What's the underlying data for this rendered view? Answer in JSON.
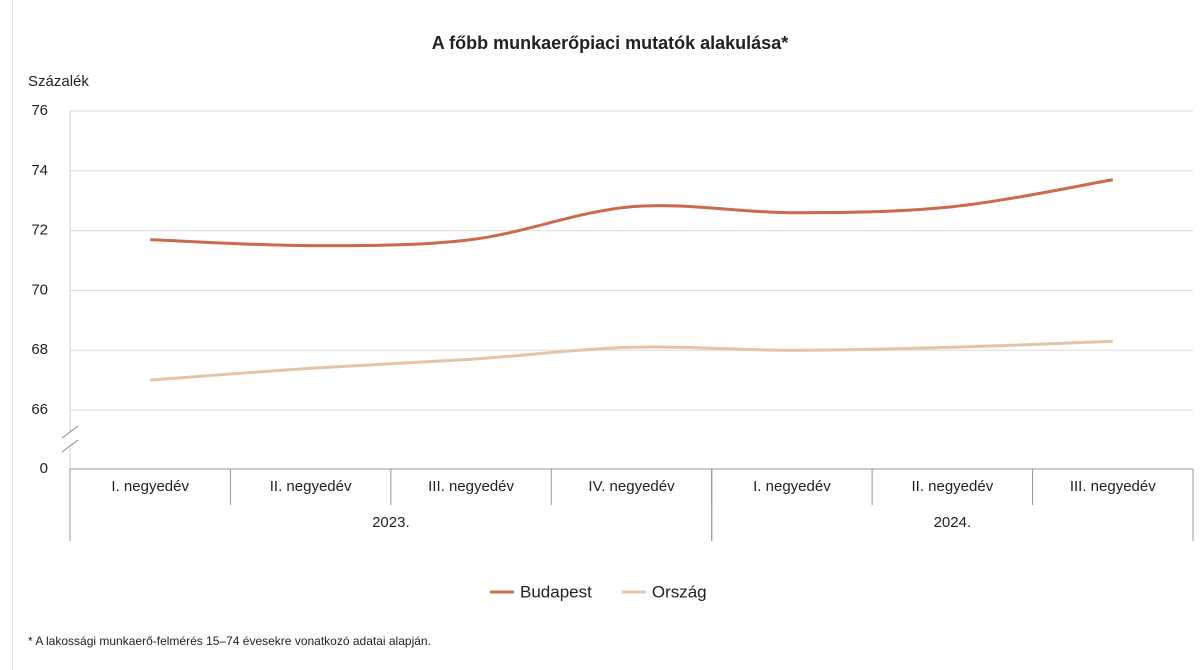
{
  "chart_data": {
    "type": "line",
    "title": "A főbb munkaerőpiaci mutatók alakulása*",
    "y_label": "Százalék",
    "footnote": "* A lakossági munkaerő-felmérés 15–74 évesekre vonatkozó adatai alapján.",
    "categories": [
      "I. negyedév",
      "II. negyedév",
      "III. negyedév",
      "IV. negyedév",
      "I. negyedév",
      "II. negyedév",
      "III. negyedév"
    ],
    "groups": [
      {
        "label": "2023.",
        "count": 4
      },
      {
        "label": "2024.",
        "count": 3
      }
    ],
    "series": [
      {
        "name": "Budapest",
        "color": "#cc6a4e",
        "values": [
          71.7,
          71.5,
          71.7,
          72.8,
          72.6,
          72.8,
          73.7
        ]
      },
      {
        "name": "Ország",
        "color": "#e3c4a8",
        "values": [
          67.0,
          67.4,
          67.7,
          68.1,
          68.0,
          68.1,
          68.3
        ]
      }
    ],
    "ylim": [
      0,
      76
    ],
    "ybreak": [
      0,
      65
    ],
    "yticks": [
      0,
      66,
      68,
      70,
      72,
      74,
      76
    ],
    "grid": true,
    "legend": "bottom"
  }
}
